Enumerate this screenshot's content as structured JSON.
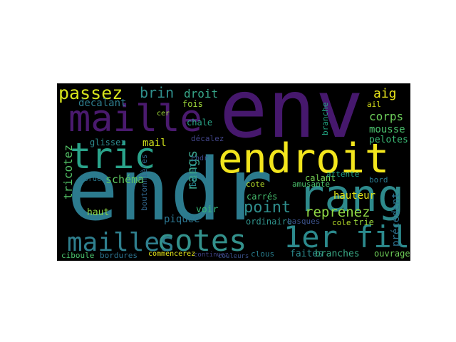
{
  "words": [
    {
      "text": "env",
      "color": "#46186d"
    },
    {
      "text": "endr",
      "color": "#2c7b8e"
    },
    {
      "text": "endroit",
      "color": "#f2e51d"
    },
    {
      "text": "rang",
      "color": "#2e8a8c"
    },
    {
      "text": "maille",
      "color": "#4a1a6e"
    },
    {
      "text": "tric",
      "color": "#2aa38a"
    },
    {
      "text": "cotes",
      "color": "#33918c"
    },
    {
      "text": "mailles",
      "color": "#2f7f8e"
    },
    {
      "text": "1er fil",
      "color": "#2c8a8d"
    },
    {
      "text": "passez",
      "color": "#d6e31c"
    },
    {
      "text": "brin",
      "color": "#2f8f8c"
    },
    {
      "text": "droit",
      "color": "#38a88a"
    },
    {
      "text": "decalant",
      "color": "#2e7e8e"
    },
    {
      "text": "point",
      "color": "#2f8e8d"
    },
    {
      "text": "reprenez",
      "color": "#8fd744"
    },
    {
      "text": "corps",
      "color": "#6ccd5a"
    },
    {
      "text": "aig",
      "color": "#e8e41a"
    },
    {
      "text": "rangs",
      "color": "#3a9f88"
    },
    {
      "text": "schéma",
      "color": "#5ec962"
    },
    {
      "text": "glissez",
      "color": "#2d8a8d"
    },
    {
      "text": "mail",
      "color": "#d0e11c"
    },
    {
      "text": "tricotez",
      "color": "#54c568"
    },
    {
      "text": "hauteur",
      "color": "#e2e418"
    },
    {
      "text": "faites",
      "color": "#2c8a8d"
    },
    {
      "text": "branches",
      "color": "#3aaa86"
    },
    {
      "text": "précédent",
      "color": "#2c718e"
    },
    {
      "text": "fois",
      "color": "#9fda3a"
    },
    {
      "text": "mousse",
      "color": "#4ac16d"
    },
    {
      "text": "pelotes",
      "color": "#3bbb75"
    },
    {
      "text": "chale",
      "color": "#2aa88a"
    },
    {
      "text": "voir",
      "color": "#38b977"
    },
    {
      "text": "ordinaire",
      "color": "#2f938c"
    },
    {
      "text": "piquée",
      "color": "#2c748e"
    },
    {
      "text": "haut",
      "color": "#8dd645"
    },
    {
      "text": "cote",
      "color": "#b5de2b"
    },
    {
      "text": "carrés",
      "color": "#46c06f"
    },
    {
      "text": "trie",
      "color": "#9bd93c"
    },
    {
      "text": "bord",
      "color": "#2a798e"
    },
    {
      "text": "ouvrage",
      "color": "#6ece58"
    },
    {
      "text": "clous",
      "color": "#287d8e"
    },
    {
      "text": "couleurs",
      "color": "#3b528b"
    },
    {
      "text": "commencerez",
      "color": "#e4e419"
    },
    {
      "text": "ciboule",
      "color": "#4ac26d"
    },
    {
      "text": "bordures",
      "color": "#2c728e"
    },
    {
      "text": "continuez",
      "color": "#414487"
    },
    {
      "text": "basilic",
      "color": "#26838e"
    },
    {
      "text": "boutonnières",
      "color": "#31678e"
    },
    {
      "text": "calant",
      "color": "#75d054"
    },
    {
      "text": "attente",
      "color": "#1fa187"
    },
    {
      "text": "amusante",
      "color": "#4cc26c"
    },
    {
      "text": "branche",
      "color": "#22a884"
    },
    {
      "text": "cer",
      "color": "#a0da39"
    },
    {
      "text": "cndr",
      "color": "#3e4a89"
    },
    {
      "text": "cole",
      "color": "#b8de29"
    },
    {
      "text": "décalez",
      "color": "#414487"
    },
    {
      "text": "bordez",
      "color": "#2a788e"
    },
    {
      "text": "ail",
      "color": "#d8e219"
    },
    {
      "text": "basques",
      "color": "#3b528b"
    }
  ]
}
